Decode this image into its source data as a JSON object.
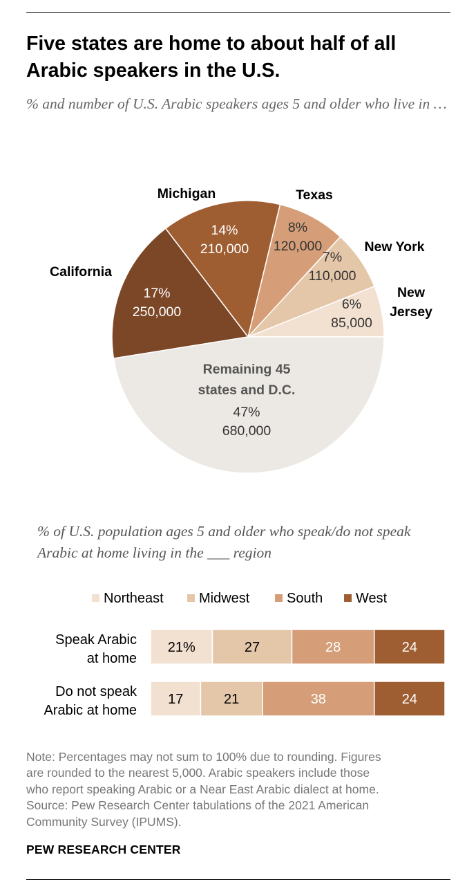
{
  "title": "Five states are home to about half of all Arabic speakers in the U.S.",
  "subtitle": "% and number of U.S. Arabic speakers ages 5 and older who live in …",
  "colors": {
    "text": "#000000",
    "note_text": "#777777",
    "slice_label_light": "#ffffff",
    "slice_label_dark": "#333333",
    "remaining_label": "#555555"
  },
  "chart_data": [
    {
      "type": "pie",
      "title": "",
      "start_angle_deg": 0,
      "direction": "counterclockwise",
      "slices": [
        {
          "label": "New Jersey",
          "label_lines": [
            "New",
            "Jersey"
          ],
          "percent": 6,
          "percent_text": "6%",
          "number": 85000,
          "number_text": "85,000",
          "color": "#f2e0d1"
        },
        {
          "label": "New York",
          "label_lines": [
            "New York"
          ],
          "percent": 7,
          "percent_text": "7%",
          "number": 110000,
          "number_text": "110,000",
          "color": "#e4c6a9"
        },
        {
          "label": "Texas",
          "label_lines": [
            "Texas"
          ],
          "percent": 8,
          "percent_text": "8%",
          "number": 120000,
          "number_text": "120,000",
          "color": "#d59e78"
        },
        {
          "label": "Michigan",
          "label_lines": [
            "Michigan"
          ],
          "percent": 14,
          "percent_text": "14%",
          "number": 210000,
          "number_text": "210,000",
          "color": "#9f5e32"
        },
        {
          "label": "California",
          "label_lines": [
            "California"
          ],
          "percent": 17,
          "percent_text": "17%",
          "number": 250000,
          "number_text": "250,000",
          "color": "#7b4727"
        },
        {
          "label": "Remaining 45 states and D.C.",
          "label_lines": [
            "Remaining 45",
            "states and D.C."
          ],
          "percent": 47,
          "percent_text": "47%",
          "number": 680000,
          "number_text": "680,000",
          "color": "#ece8e3"
        }
      ]
    },
    {
      "type": "bar",
      "orientation": "horizontal",
      "stacked": true,
      "title": "% of U.S. population ages 5 and older who speak/do not speak Arabic at home living in the ___ region",
      "categories": [
        "Speak Arabic at home",
        "Do not speak Arabic at home"
      ],
      "category_lines": [
        [
          "Speak Arabic",
          "at home"
        ],
        [
          "Do not speak",
          "Arabic at home"
        ]
      ],
      "legend_position": "top",
      "series": [
        {
          "name": "Northeast",
          "color": "#f2e0d1",
          "label_color": "#000000",
          "values": [
            21,
            17
          ],
          "value_labels": [
            "21%",
            "17"
          ]
        },
        {
          "name": "Midwest",
          "color": "#e4c6a9",
          "label_color": "#000000",
          "values": [
            27,
            21
          ],
          "value_labels": [
            "27",
            "21"
          ]
        },
        {
          "name": "South",
          "color": "#d59e78",
          "label_color": "#ffffff",
          "values": [
            28,
            38
          ],
          "value_labels": [
            "28",
            "38"
          ]
        },
        {
          "name": "West",
          "color": "#9f5e32",
          "label_color": "#ffffff",
          "values": [
            24,
            24
          ],
          "value_labels": [
            "24",
            "24"
          ]
        }
      ]
    }
  ],
  "note_lines": [
    "Note: Percentages may not sum to 100% due to rounding. Figures",
    "are rounded to the nearest 5,000. Arabic speakers include those",
    "who report speaking Arabic or a Near East Arabic dialect at home.",
    "Source: Pew Research Center tabulations of the 2021 American",
    "Community Survey (IPUMS)."
  ],
  "source_org": "PEW RESEARCH CENTER"
}
